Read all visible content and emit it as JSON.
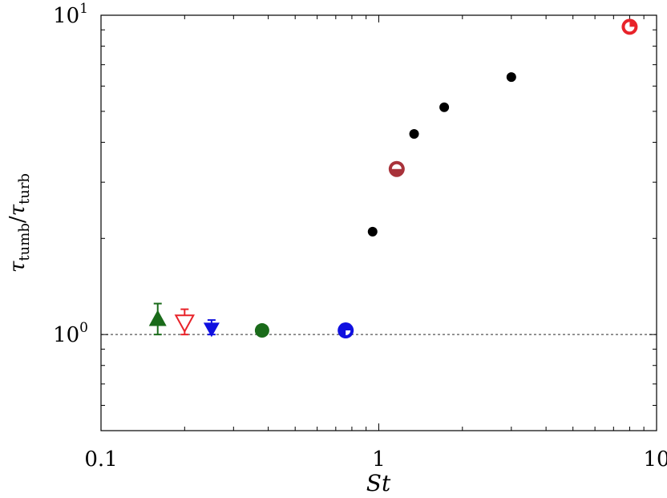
{
  "chart_data": {
    "type": "scatter",
    "xscale": "log",
    "yscale": "log",
    "xlim": [
      0.1,
      10
    ],
    "ylim": [
      0.5,
      10
    ],
    "xlabel": "St",
    "ylabel_parts": {
      "sym": "τ",
      "sub1": "tumb",
      "slash": "/",
      "sub2": "turb"
    },
    "xticks": [
      {
        "value": 0.1,
        "label": "0.1"
      },
      {
        "value": 1,
        "label": "1"
      },
      {
        "value": 10,
        "label": "10"
      }
    ],
    "yticks": [
      {
        "value": 1,
        "base": "10",
        "exp": "0"
      },
      {
        "value": 10,
        "base": "10",
        "exp": "1"
      }
    ],
    "reference_line": {
      "y": 1,
      "style": "dashed",
      "color": "#555555"
    },
    "series": [
      {
        "marker": "triangle-up-filled",
        "color": "#1a6b1a",
        "points": [
          {
            "x": 0.16,
            "y": 1.12,
            "yerr_low": 1.0,
            "yerr_high": 1.25
          }
        ]
      },
      {
        "marker": "triangle-down-open",
        "color": "#e8232a",
        "points": [
          {
            "x": 0.2,
            "y": 1.09,
            "yerr_low": 1.0,
            "yerr_high": 1.2
          }
        ]
      },
      {
        "marker": "triangle-down-filled",
        "color": "#1010e0",
        "points": [
          {
            "x": 0.25,
            "y": 1.04,
            "yerr_low": 1.0,
            "yerr_high": 1.11
          }
        ]
      },
      {
        "marker": "circle-filled",
        "color": "#1a6b1a",
        "points": [
          {
            "x": 0.38,
            "y": 1.03
          }
        ]
      },
      {
        "marker": "circle-half-blue",
        "color": "#1010e0",
        "points": [
          {
            "x": 0.76,
            "y": 1.03
          }
        ]
      },
      {
        "marker": "circle-small",
        "color": "#000000",
        "points": [
          {
            "x": 0.95,
            "y": 2.1
          },
          {
            "x": 1.34,
            "y": 4.25
          },
          {
            "x": 1.72,
            "y": 5.15
          },
          {
            "x": 3.0,
            "y": 6.4
          }
        ]
      },
      {
        "marker": "circle-half-brown",
        "color": "#a8323a",
        "points": [
          {
            "x": 1.16,
            "y": 3.3
          }
        ]
      },
      {
        "marker": "circle-quarter-red",
        "color": "#e8232a",
        "points": [
          {
            "x": 8.0,
            "y": 9.2
          }
        ]
      }
    ]
  }
}
